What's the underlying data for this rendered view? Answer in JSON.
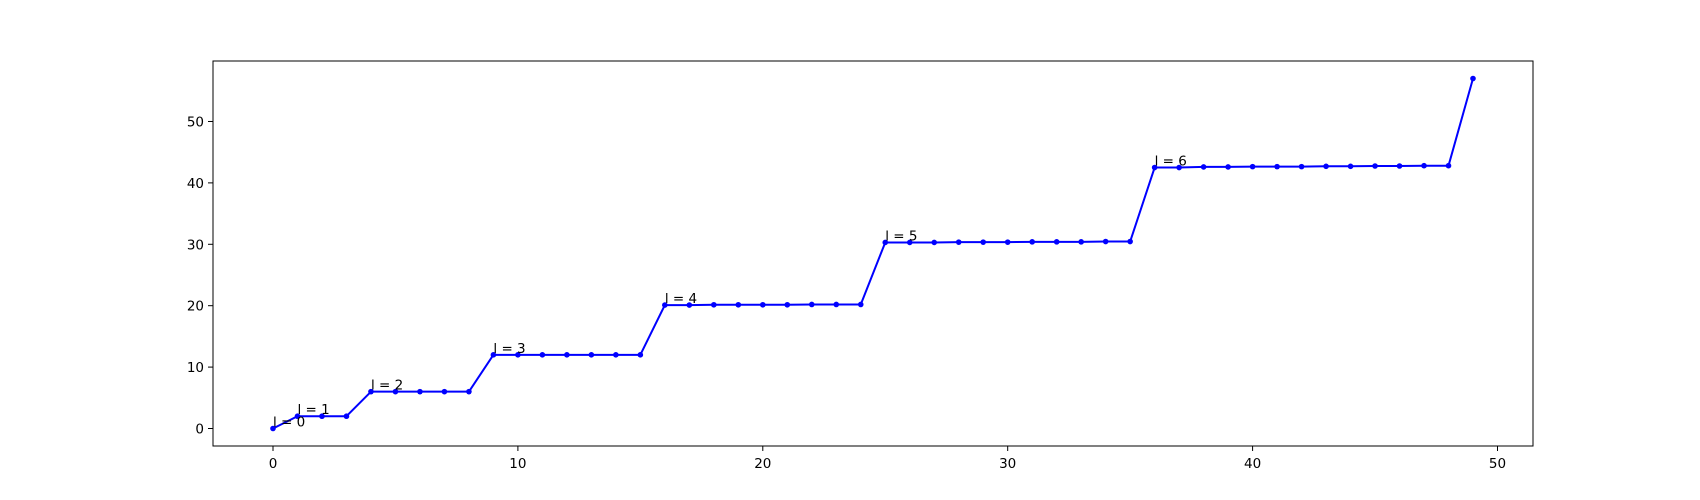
{
  "chart_data": {
    "type": "line",
    "title": "",
    "xlabel": "",
    "ylabel": "",
    "xlim": [
      -2.45,
      51.45
    ],
    "ylim": [
      -2.85,
      59.85
    ],
    "grid": false,
    "legend": "none",
    "xticks": [
      0,
      10,
      20,
      30,
      40,
      50
    ],
    "yticks": [
      0,
      10,
      20,
      30,
      40,
      50
    ],
    "series": [
      {
        "color": "#0000ff",
        "marker": "dot",
        "x": [
          0,
          1,
          2,
          3,
          4,
          5,
          6,
          7,
          8,
          9,
          10,
          11,
          12,
          13,
          14,
          15,
          16,
          17,
          18,
          19,
          20,
          21,
          22,
          23,
          24,
          25,
          26,
          27,
          28,
          29,
          30,
          31,
          32,
          33,
          34,
          35,
          36,
          37,
          38,
          39,
          40,
          41,
          42,
          43,
          44,
          45,
          46,
          47,
          48,
          49
        ],
        "y": [
          0,
          2,
          2,
          2,
          6,
          6,
          6,
          6,
          6,
          12,
          12,
          12,
          12,
          12,
          12,
          12,
          20.1,
          20.1,
          20.15,
          20.15,
          20.15,
          20.15,
          20.2,
          20.2,
          20.2,
          30.3,
          30.3,
          30.3,
          30.35,
          30.35,
          30.35,
          30.4,
          30.4,
          30.4,
          30.45,
          30.45,
          42.5,
          42.5,
          42.6,
          42.6,
          42.65,
          42.65,
          42.65,
          42.7,
          42.7,
          42.75,
          42.75,
          42.8,
          42.8,
          57
        ]
      }
    ],
    "annotations": [
      {
        "text": "l = 0",
        "x": 0,
        "y": 0
      },
      {
        "text": "l = 1",
        "x": 1,
        "y": 2
      },
      {
        "text": "l = 2",
        "x": 4,
        "y": 6
      },
      {
        "text": "l = 3",
        "x": 9,
        "y": 12
      },
      {
        "text": "l = 4",
        "x": 16,
        "y": 20.1
      },
      {
        "text": "l = 5",
        "x": 25,
        "y": 30.3
      },
      {
        "text": "l = 6",
        "x": 36,
        "y": 42.5
      }
    ]
  }
}
